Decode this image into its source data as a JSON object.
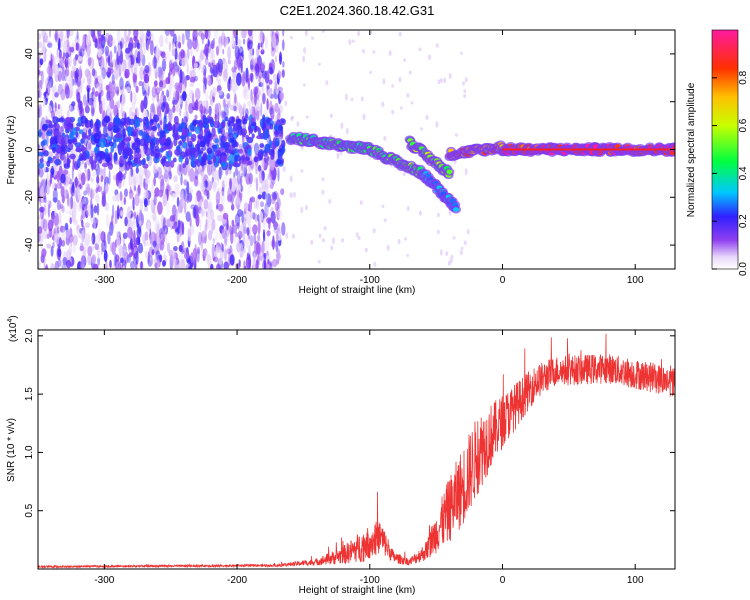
{
  "figure_title": "C2E1.2024.360.18.42.G31",
  "chart_data": [
    {
      "type": "heatmap",
      "title": "C2E1.2024.360.18.42.G31",
      "xlabel": "Height of straight line (km)",
      "ylabel": "Frequency (Hz)",
      "xlim": [
        -350,
        130
      ],
      "ylim": [
        -50,
        50
      ],
      "x_ticks": [
        -300,
        -200,
        -100,
        0,
        100
      ],
      "y_ticks": [
        -40,
        -20,
        0,
        20,
        40
      ],
      "colorbar": {
        "label": "Normalized spectral amplitude",
        "range": [
          0.0,
          1.0
        ],
        "ticks": [
          0.0,
          0.2,
          0.4,
          0.6,
          0.8
        ]
      },
      "features": {
        "noise_region_x": [
          -350,
          -165
        ],
        "carrier_segments": [
          {
            "x": [
              -160,
              -100
            ],
            "freq": [
              5,
              0
            ],
            "amplitude": 0.45
          },
          {
            "x": [
              -100,
              -60
            ],
            "freq": [
              0,
              -10
            ],
            "amplitude": 0.5
          },
          {
            "x": [
              -60,
              -35
            ],
            "freq": [
              -10,
              -24
            ],
            "amplitude": 0.3
          },
          {
            "x": [
              -70,
              -40
            ],
            "freq": [
              3,
              -10
            ],
            "amplitude": 0.55
          },
          {
            "x": [
              -40,
              0
            ],
            "freq": [
              -2,
              1
            ],
            "amplitude": 0.75
          },
          {
            "x": [
              0,
              130
            ],
            "freq": [
              0,
              0
            ],
            "amplitude": 0.95
          }
        ]
      },
      "grid": false,
      "legend": "right"
    },
    {
      "type": "line",
      "xlabel": "Height of straight line (km)",
      "ylabel": "SNR (10 * v/v)",
      "scale_label": "(x10",
      "scale_exp": "4",
      "xlim": [
        -350,
        130
      ],
      "ylim": [
        0,
        2.05
      ],
      "x_ticks": [
        -300,
        -200,
        -100,
        0,
        100
      ],
      "y_ticks": [
        0.5,
        1.0,
        1.5,
        2.0
      ],
      "y_tick_labels": [
        "0.5",
        "1.0",
        "1.5",
        "2.0"
      ],
      "color": "#ee3333",
      "series_profile": [
        {
          "x": -350,
          "y": 0.02,
          "noise": 0.008
        },
        {
          "x": -170,
          "y": 0.03,
          "noise": 0.01
        },
        {
          "x": -140,
          "y": 0.06,
          "noise": 0.03
        },
        {
          "x": -120,
          "y": 0.12,
          "noise": 0.08
        },
        {
          "x": -105,
          "y": 0.2,
          "noise": 0.14
        },
        {
          "x": -92,
          "y": 0.28,
          "noise": 0.15
        },
        {
          "x": -82,
          "y": 0.1,
          "noise": 0.05
        },
        {
          "x": -70,
          "y": 0.06,
          "noise": 0.03
        },
        {
          "x": -58,
          "y": 0.15,
          "noise": 0.08
        },
        {
          "x": -48,
          "y": 0.35,
          "noise": 0.2
        },
        {
          "x": -38,
          "y": 0.55,
          "noise": 0.3
        },
        {
          "x": -28,
          "y": 0.75,
          "noise": 0.35
        },
        {
          "x": -18,
          "y": 1.0,
          "noise": 0.35
        },
        {
          "x": -5,
          "y": 1.2,
          "noise": 0.25
        },
        {
          "x": 10,
          "y": 1.4,
          "noise": 0.2
        },
        {
          "x": 25,
          "y": 1.6,
          "noise": 0.15
        },
        {
          "x": 40,
          "y": 1.7,
          "noise": 0.13
        },
        {
          "x": 80,
          "y": 1.72,
          "noise": 0.13
        },
        {
          "x": 130,
          "y": 1.6,
          "noise": 0.13
        }
      ],
      "legend": "none",
      "grid": false
    }
  ]
}
